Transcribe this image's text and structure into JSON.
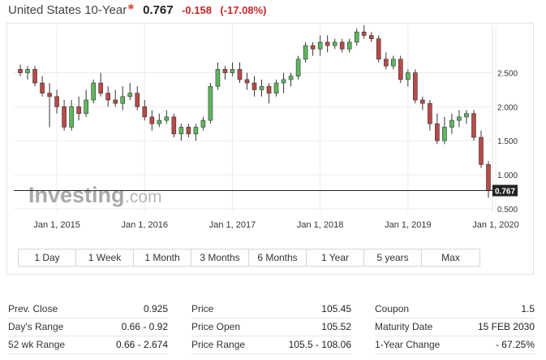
{
  "header": {
    "name": "United States 10-Year",
    "star": "✱",
    "price": "0.767",
    "change": "-0.158",
    "change_pct": "(-17.08%)",
    "negative_color": "#c62828"
  },
  "watermark": {
    "text_bold": "Investing",
    "text_light": ".com"
  },
  "range_tabs": [
    "1 Day",
    "1 Week",
    "1 Month",
    "3 Months",
    "6 Months",
    "1 Year",
    "5 years",
    "Max"
  ],
  "stats": {
    "col1": [
      {
        "label": "Prev. Close",
        "value": "0.925"
      },
      {
        "label": "Day's Range",
        "value": "0.66 - 0.92"
      },
      {
        "label": "52 wk Range",
        "value": "0.66 - 2.674"
      }
    ],
    "col2": [
      {
        "label": "Price",
        "value": "105.45"
      },
      {
        "label": "Price Open",
        "value": "105.52"
      },
      {
        "label": "Price Range",
        "value": "105.5 - 108.06"
      }
    ],
    "col3": [
      {
        "label": "Coupon",
        "value": "1.5"
      },
      {
        "label": "Maturity Date",
        "value": "15 FEB 2030"
      },
      {
        "label": "1-Year Change",
        "value": "- 67.25%"
      }
    ]
  },
  "chart_data": {
    "type": "candlestick",
    "interval": "monthly",
    "first_period": "2014-08",
    "x_tick_labels": [
      "Jan 1, 2015",
      "Jan 1, 2016",
      "Jan 1, 2017",
      "Jan 1, 2018",
      "Jan 1, 2019",
      "Jan 1, 2020"
    ],
    "y_tick_labels": [
      "0.500",
      "1.000",
      "1.500",
      "2.000",
      "2.500"
    ],
    "y_ticks": [
      0.5,
      1.0,
      1.5,
      2.0,
      2.5
    ],
    "ylim": [
      0.45,
      3.2
    ],
    "y_axis_side": "right",
    "grid": true,
    "last_price_label": "0.767",
    "last_price": 0.767,
    "up_color": "#5cb85c",
    "down_color": "#b94a48",
    "ohlc": [
      [
        2.55,
        2.62,
        2.45,
        2.5
      ],
      [
        2.5,
        2.6,
        2.4,
        2.55
      ],
      [
        2.55,
        2.6,
        2.3,
        2.35
      ],
      [
        2.35,
        2.45,
        2.15,
        2.2
      ],
      [
        2.2,
        2.35,
        1.7,
        2.15
      ],
      [
        2.15,
        2.25,
        1.9,
        2.0
      ],
      [
        2.0,
        2.1,
        1.65,
        1.7
      ],
      [
        1.7,
        2.1,
        1.65,
        2.0
      ],
      [
        2.0,
        2.15,
        1.8,
        1.9
      ],
      [
        1.9,
        2.25,
        1.85,
        2.1
      ],
      [
        2.1,
        2.4,
        2.05,
        2.35
      ],
      [
        2.35,
        2.5,
        2.15,
        2.2
      ],
      [
        2.2,
        2.3,
        2.0,
        2.1
      ],
      [
        2.1,
        2.25,
        2.0,
        2.05
      ],
      [
        2.05,
        2.3,
        1.95,
        2.15
      ],
      [
        2.15,
        2.35,
        2.1,
        2.2
      ],
      [
        2.2,
        2.3,
        1.95,
        2.0
      ],
      [
        2.0,
        2.1,
        1.8,
        1.85
      ],
      [
        1.85,
        1.95,
        1.65,
        1.75
      ],
      [
        1.75,
        1.9,
        1.7,
        1.8
      ],
      [
        1.8,
        1.95,
        1.75,
        1.85
      ],
      [
        1.85,
        1.9,
        1.55,
        1.6
      ],
      [
        1.6,
        1.75,
        1.5,
        1.7
      ],
      [
        1.7,
        1.75,
        1.55,
        1.6
      ],
      [
        1.6,
        1.75,
        1.5,
        1.7
      ],
      [
        1.7,
        1.85,
        1.65,
        1.8
      ],
      [
        1.8,
        2.35,
        1.75,
        2.3
      ],
      [
        2.3,
        2.65,
        2.25,
        2.55
      ],
      [
        2.55,
        2.6,
        2.4,
        2.5
      ],
      [
        2.5,
        2.65,
        2.45,
        2.55
      ],
      [
        2.55,
        2.65,
        2.35,
        2.4
      ],
      [
        2.4,
        2.5,
        2.25,
        2.35
      ],
      [
        2.35,
        2.45,
        2.15,
        2.25
      ],
      [
        2.25,
        2.4,
        2.15,
        2.3
      ],
      [
        2.3,
        2.35,
        2.05,
        2.2
      ],
      [
        2.2,
        2.4,
        2.15,
        2.35
      ],
      [
        2.35,
        2.5,
        2.2,
        2.4
      ],
      [
        2.4,
        2.5,
        2.3,
        2.45
      ],
      [
        2.45,
        2.75,
        2.4,
        2.7
      ],
      [
        2.7,
        2.95,
        2.65,
        2.9
      ],
      [
        2.9,
        2.95,
        2.75,
        2.85
      ],
      [
        2.85,
        3.05,
        2.75,
        2.95
      ],
      [
        2.95,
        3.05,
        2.8,
        2.9
      ],
      [
        2.9,
        3.0,
        2.85,
        2.95
      ],
      [
        2.95,
        3.0,
        2.8,
        2.85
      ],
      [
        2.85,
        3.0,
        2.8,
        2.95
      ],
      [
        2.95,
        3.15,
        2.9,
        3.1
      ],
      [
        3.1,
        3.2,
        3.0,
        3.05
      ],
      [
        3.05,
        3.1,
        2.95,
        3.0
      ],
      [
        3.0,
        3.05,
        2.65,
        2.7
      ],
      [
        2.7,
        2.8,
        2.55,
        2.6
      ],
      [
        2.6,
        2.75,
        2.55,
        2.7
      ],
      [
        2.7,
        2.75,
        2.35,
        2.4
      ],
      [
        2.4,
        2.55,
        2.3,
        2.5
      ],
      [
        2.5,
        2.55,
        2.05,
        2.1
      ],
      [
        2.1,
        2.15,
        1.95,
        2.05
      ],
      [
        2.05,
        2.1,
        1.65,
        1.75
      ],
      [
        1.75,
        1.9,
        1.45,
        1.5
      ],
      [
        1.5,
        1.85,
        1.45,
        1.7
      ],
      [
        1.7,
        1.9,
        1.6,
        1.8
      ],
      [
        1.8,
        1.95,
        1.7,
        1.85
      ],
      [
        1.85,
        1.95,
        1.75,
        1.9
      ],
      [
        1.9,
        1.95,
        1.5,
        1.55
      ],
      [
        1.55,
        1.65,
        1.1,
        1.15
      ],
      [
        1.15,
        1.2,
        0.66,
        0.77
      ]
    ]
  }
}
